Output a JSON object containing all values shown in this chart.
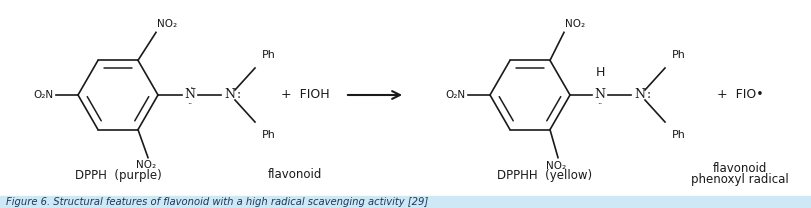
{
  "background_color": "#ffffff",
  "fig_width": 8.12,
  "fig_height": 2.08,
  "dpi": 100,
  "caption_bg": "#cfe8f5",
  "caption_text": "Figure 6. Structural features of flavonoid with a high radical scavenging activity [29]",
  "caption_fontsize": 7.2,
  "label_color": "#1a1a1a",
  "label1": "DPPH  (purple)",
  "label2": "flavonoid",
  "label3": "DPPHH  (yellow)",
  "label4_line1": "flavonoid",
  "label4_line2": "phenoxyl radical"
}
